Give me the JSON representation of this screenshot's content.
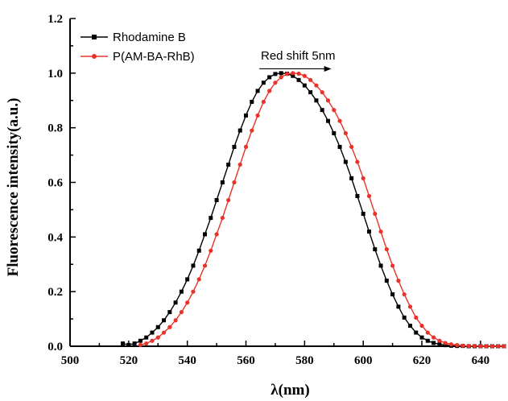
{
  "chart_data": {
    "type": "line",
    "xlabel": "λ(nm)",
    "ylabel": "Fluorescence intensity(a.u.)",
    "xlim": [
      500,
      648
    ],
    "ylim": [
      0,
      1.2
    ],
    "xticks": [
      500,
      520,
      540,
      560,
      580,
      600,
      620,
      640
    ],
    "yticks": [
      0.0,
      0.2,
      0.4,
      0.6,
      0.8,
      1.0,
      1.2
    ],
    "xtick_labels": [
      "500",
      "520",
      "540",
      "560",
      "580",
      "600",
      "620",
      "640"
    ],
    "ytick_labels": [
      "0.0",
      "0.2",
      "0.4",
      "0.6",
      "0.8",
      "1.0",
      "1.2"
    ],
    "grid": false,
    "legend_position": "top-left",
    "annotation": {
      "text": "Red shift 5nm",
      "arrow_from_x": 575,
      "arrow_to_x": 582,
      "y": 1.01
    },
    "series": [
      {
        "name": "Rhodamine B",
        "color": "#000000",
        "marker": "square",
        "x": [
          518,
          520,
          522,
          524,
          526,
          528,
          530,
          532,
          534,
          536,
          538,
          540,
          542,
          544,
          546,
          548,
          550,
          552,
          554,
          556,
          558,
          560,
          562,
          564,
          566,
          568,
          570,
          572,
          574,
          576,
          578,
          580,
          582,
          584,
          586,
          588,
          590,
          592,
          594,
          596,
          598,
          600,
          602,
          604,
          606,
          608,
          610,
          612,
          614,
          616,
          618,
          620,
          622,
          624,
          626,
          628,
          630,
          632,
          634,
          636,
          638,
          640,
          642,
          644,
          646,
          648
        ],
        "y": [
          0.01,
          0.005,
          0.01,
          0.02,
          0.032,
          0.05,
          0.07,
          0.095,
          0.125,
          0.16,
          0.2,
          0.245,
          0.295,
          0.35,
          0.41,
          0.47,
          0.535,
          0.6,
          0.665,
          0.73,
          0.79,
          0.845,
          0.895,
          0.935,
          0.965,
          0.985,
          0.997,
          1.0,
          0.998,
          0.99,
          0.975,
          0.955,
          0.93,
          0.9,
          0.865,
          0.825,
          0.78,
          0.73,
          0.675,
          0.615,
          0.55,
          0.485,
          0.42,
          0.355,
          0.295,
          0.24,
          0.19,
          0.145,
          0.105,
          0.075,
          0.05,
          0.032,
          0.02,
          0.012,
          0.007,
          0.004,
          0.002,
          0.001,
          0.001,
          0.0,
          0.0,
          0.0,
          0.0,
          0.0,
          0.0,
          0.0
        ]
      },
      {
        "name": "P(AM-BA-RhB)",
        "color": "#e8332a",
        "marker": "circle",
        "x": [
          524,
          526,
          528,
          530,
          532,
          534,
          536,
          538,
          540,
          542,
          544,
          546,
          548,
          550,
          552,
          554,
          556,
          558,
          560,
          562,
          564,
          566,
          568,
          570,
          572,
          574,
          576,
          578,
          580,
          582,
          584,
          586,
          588,
          590,
          592,
          594,
          596,
          598,
          600,
          602,
          604,
          606,
          608,
          610,
          612,
          614,
          616,
          618,
          620,
          622,
          624,
          626,
          628,
          630,
          632,
          634,
          636,
          638,
          640,
          642,
          644,
          646,
          648
        ],
        "y": [
          0.005,
          0.01,
          0.02,
          0.032,
          0.05,
          0.07,
          0.095,
          0.125,
          0.16,
          0.2,
          0.245,
          0.295,
          0.35,
          0.41,
          0.47,
          0.535,
          0.6,
          0.665,
          0.73,
          0.79,
          0.845,
          0.895,
          0.935,
          0.965,
          0.985,
          0.997,
          1.0,
          0.998,
          0.99,
          0.975,
          0.955,
          0.93,
          0.9,
          0.865,
          0.825,
          0.78,
          0.73,
          0.675,
          0.615,
          0.55,
          0.485,
          0.42,
          0.355,
          0.295,
          0.24,
          0.19,
          0.145,
          0.105,
          0.075,
          0.05,
          0.032,
          0.02,
          0.012,
          0.007,
          0.004,
          0.002,
          0.001,
          0.001,
          0.0,
          0.0,
          0.0,
          0.0,
          0.0
        ]
      }
    ]
  }
}
